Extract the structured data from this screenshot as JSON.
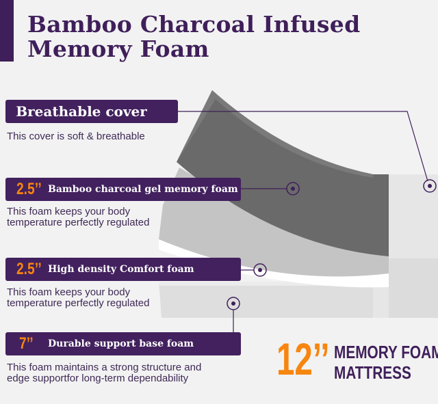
{
  "title": {
    "line1": "Bamboo Charcoal Infused",
    "line2": "Memory Foam"
  },
  "layers": [
    {
      "thickness": "",
      "label": "Breathable cover",
      "description": [
        "This cover is soft & breathable"
      ]
    },
    {
      "thickness": "2.5’’",
      "label": "Bamboo charcoal gel  memory foam",
      "description": [
        "This foam keeps your body",
        "temperature perfectly regulated"
      ]
    },
    {
      "thickness": "2.5’’",
      "label": "High density Comfort foam",
      "description": [
        "This foam keeps your body",
        "temperature perfectly regulated"
      ]
    },
    {
      "thickness": "7’’",
      "label": "Durable support base foam",
      "description": [
        "This foam maintains a strong structure and",
        "edge supportfor long-term dependability"
      ]
    }
  ],
  "product": {
    "size": "12’’",
    "line1": "MEMORY FOAM",
    "line2": "MATTRESS"
  },
  "colors": {
    "brand_purple": "#42215e",
    "accent_orange": "#f7860f",
    "background": "#f2f2f2"
  }
}
